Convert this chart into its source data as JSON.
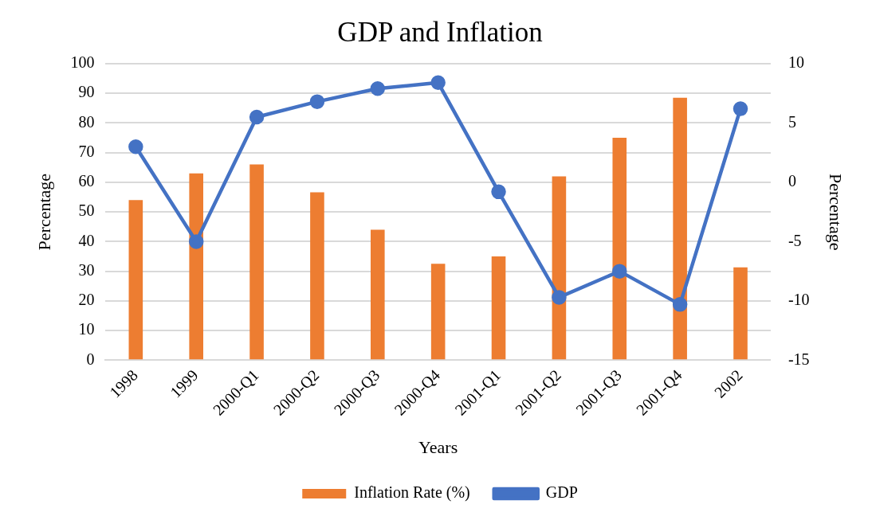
{
  "chart_data": {
    "type": "bar",
    "title": "GDP and Inflation",
    "xlabel": "Years",
    "ylabel": "Percentage",
    "y2label": "Percentage",
    "categories": [
      "1998",
      "1999",
      "2000-Q1",
      "2000-Q2",
      "2000-Q3",
      "2000-Q4",
      "2001-Q1",
      "2001-Q2",
      "2001-Q3",
      "2001-Q4",
      "2002"
    ],
    "series": [
      {
        "name": "Inflation Rate (%)",
        "color": "#ed7d31",
        "values": [
          54,
          63,
          66,
          56.6,
          44,
          32.5,
          35,
          62,
          75,
          88.5,
          31.3
        ]
      },
      {
        "name": "GDP",
        "type": "line",
        "axis": "y2",
        "color": "#4472c4",
        "values": [
          3,
          -5,
          5.5,
          6.8,
          7.9,
          8.4,
          -0.8,
          -9.7,
          -7.5,
          -10.3,
          6.2
        ]
      }
    ],
    "ylim": [
      0,
      100
    ],
    "yticks": [
      0,
      10,
      20,
      30,
      40,
      50,
      60,
      70,
      80,
      90,
      100
    ],
    "y2lim": [
      -15,
      10
    ],
    "y2ticks": [
      -15,
      -10,
      -5,
      0,
      5,
      10
    ],
    "grid": "y",
    "legend": "bottom",
    "marker": "circle",
    "line_style": "solid"
  }
}
